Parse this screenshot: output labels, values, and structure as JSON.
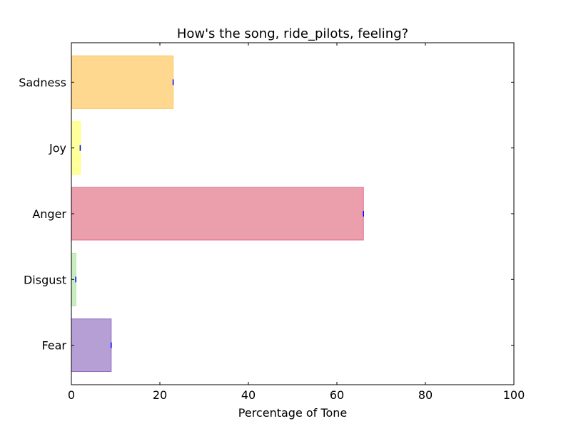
{
  "chart_data": {
    "type": "bar",
    "orientation": "horizontal",
    "title": "How's the song, ride_pilots, feeling?",
    "xlabel": "Percentage of Tone",
    "ylabel": "",
    "xlim": [
      0,
      100
    ],
    "xticks": [
      "0",
      "20",
      "40",
      "60",
      "80",
      "100"
    ],
    "xtick_values": [
      0,
      20,
      40,
      60,
      80,
      100
    ],
    "categories": [
      "Fear",
      "Disgust",
      "Anger",
      "Joy",
      "Sadness"
    ],
    "values": [
      9,
      1,
      66,
      2,
      23
    ],
    "colors": [
      "#8e6bbf",
      "#a9e5a0",
      "#e16a7f",
      "#ffff66",
      "#ffc354"
    ],
    "bar_opacity": 0.65,
    "grid": false,
    "legend": "none"
  }
}
